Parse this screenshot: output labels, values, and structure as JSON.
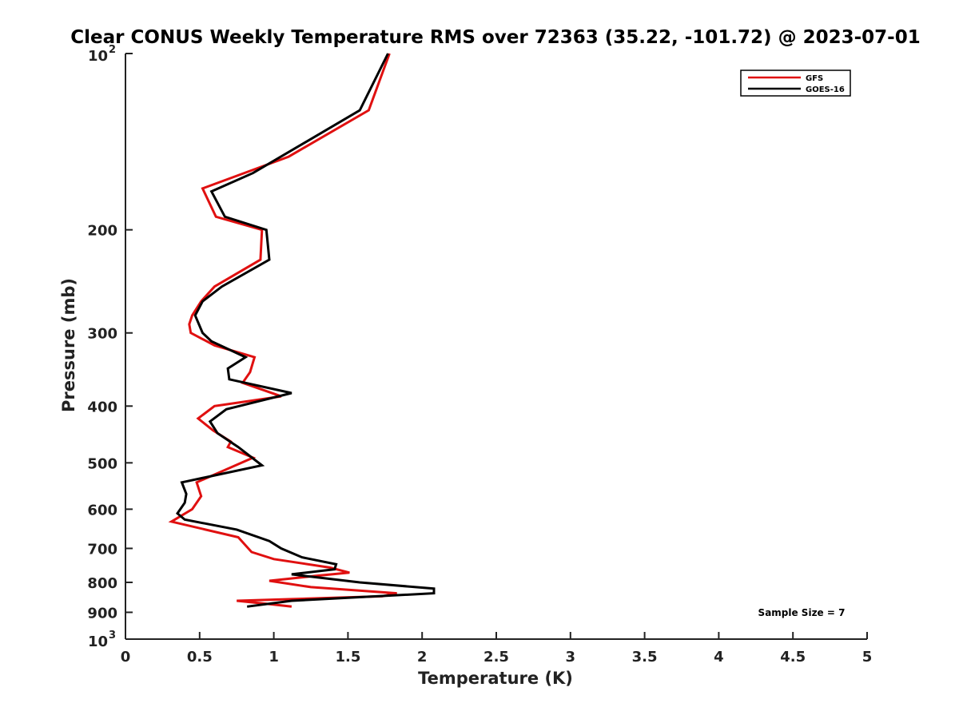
{
  "chart_data": {
    "type": "line",
    "title": "Clear CONUS Weekly Temperature RMS over 72363 (35.22, -101.72) @ 2023-07-01",
    "xlabel": "Temperature (K)",
    "ylabel": "Pressure (mb)",
    "xlim": [
      0,
      5
    ],
    "ylim": [
      100,
      1000
    ],
    "y_scale": "log",
    "y_reversed": true,
    "grid": false,
    "legend_position": "top-right",
    "x_ticks": [
      0,
      0.5,
      1,
      1.5,
      2,
      2.5,
      3,
      3.5,
      4,
      4.5,
      5
    ],
    "x_tick_labels": [
      "0",
      "0.5",
      "1",
      "1.5",
      "2",
      "2.5",
      "3",
      "3.5",
      "4",
      "4.5",
      "5"
    ],
    "y_ticks": [
      {
        "value": 100,
        "base": "10",
        "exp": "2"
      },
      {
        "value": 200,
        "label": "200"
      },
      {
        "value": 300,
        "label": "300"
      },
      {
        "value": 400,
        "label": "400"
      },
      {
        "value": 500,
        "label": "500"
      },
      {
        "value": 600,
        "label": "600"
      },
      {
        "value": 700,
        "label": "700"
      },
      {
        "value": 800,
        "label": "800"
      },
      {
        "value": 900,
        "label": "900"
      },
      {
        "value": 1000,
        "base": "10",
        "exp": "3"
      }
    ],
    "series": [
      {
        "name": "GFS",
        "color": "#e01010",
        "points": [
          [
            1.78,
            100
          ],
          [
            1.64,
            125
          ],
          [
            1.1,
            150
          ],
          [
            0.52,
            170
          ],
          [
            0.61,
            190
          ],
          [
            0.92,
            200
          ],
          [
            0.91,
            225
          ],
          [
            0.6,
            250
          ],
          [
            0.51,
            265
          ],
          [
            0.45,
            280
          ],
          [
            0.43,
            290
          ],
          [
            0.44,
            300
          ],
          [
            0.6,
            315
          ],
          [
            0.87,
            330
          ],
          [
            0.84,
            350
          ],
          [
            0.79,
            365
          ],
          [
            1.05,
            385
          ],
          [
            0.6,
            400
          ],
          [
            0.49,
            420
          ],
          [
            0.59,
            440
          ],
          [
            0.71,
            460
          ],
          [
            0.69,
            470
          ],
          [
            0.86,
            490
          ],
          [
            0.48,
            540
          ],
          [
            0.51,
            570
          ],
          [
            0.45,
            600
          ],
          [
            0.31,
            630
          ],
          [
            0.76,
            670
          ],
          [
            0.85,
            710
          ],
          [
            1.0,
            730
          ],
          [
            1.38,
            755
          ],
          [
            1.51,
            770
          ],
          [
            1.28,
            780
          ],
          [
            0.97,
            795
          ],
          [
            1.25,
            815
          ],
          [
            1.83,
            835
          ],
          [
            1.73,
            845
          ],
          [
            0.75,
            860
          ],
          [
            0.95,
            870
          ],
          [
            1.12,
            880
          ]
        ]
      },
      {
        "name": "GOES-16",
        "color": "#000000",
        "points": [
          [
            1.77,
            100
          ],
          [
            1.58,
            125
          ],
          [
            0.86,
            160
          ],
          [
            0.58,
            172
          ],
          [
            0.67,
            190
          ],
          [
            0.95,
            200
          ],
          [
            0.97,
            225
          ],
          [
            0.65,
            250
          ],
          [
            0.52,
            265
          ],
          [
            0.47,
            280
          ],
          [
            0.52,
            300
          ],
          [
            0.58,
            310
          ],
          [
            0.81,
            330
          ],
          [
            0.69,
            345
          ],
          [
            0.7,
            360
          ],
          [
            1.12,
            380
          ],
          [
            0.68,
            405
          ],
          [
            0.57,
            425
          ],
          [
            0.62,
            445
          ],
          [
            0.76,
            470
          ],
          [
            0.92,
            505
          ],
          [
            0.38,
            540
          ],
          [
            0.41,
            565
          ],
          [
            0.4,
            585
          ],
          [
            0.35,
            610
          ],
          [
            0.4,
            625
          ],
          [
            0.75,
            650
          ],
          [
            0.97,
            680
          ],
          [
            1.05,
            700
          ],
          [
            1.19,
            725
          ],
          [
            1.42,
            745
          ],
          [
            1.41,
            760
          ],
          [
            1.12,
            775
          ],
          [
            1.3,
            785
          ],
          [
            1.58,
            800
          ],
          [
            2.08,
            820
          ],
          [
            2.08,
            835
          ],
          [
            1.12,
            860
          ],
          [
            0.82,
            880
          ]
        ]
      }
    ],
    "legend": [
      "GFS",
      "GOES-16"
    ],
    "annotation": "Sample Size = 7"
  }
}
